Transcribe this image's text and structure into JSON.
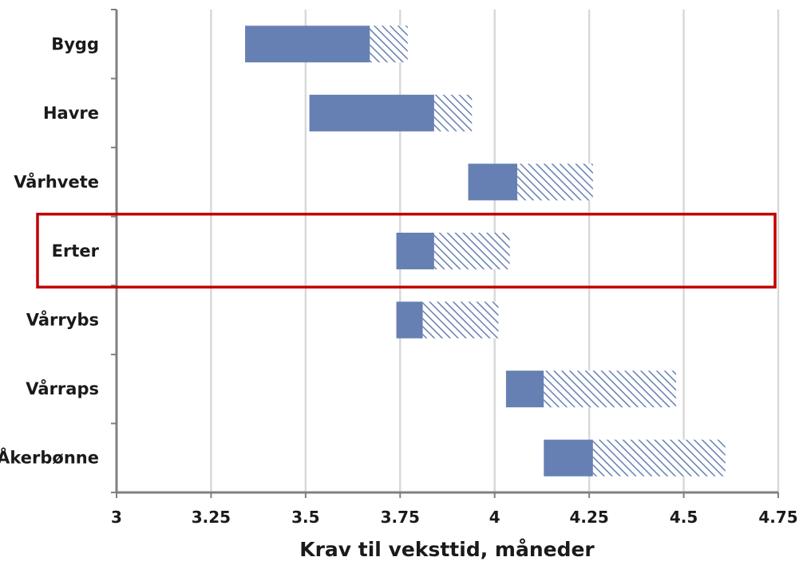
{
  "chart_data": {
    "type": "bar",
    "orientation": "horizontal",
    "stacked": true,
    "categories": [
      "Bygg",
      "Havre",
      "Vårhvete",
      "Erter",
      "Vårrybs",
      "Vårraps",
      "Åkerbønne"
    ],
    "series": [
      {
        "role": "solid",
        "start": [
          3.34,
          3.51,
          3.93,
          3.74,
          3.74,
          4.03,
          4.13
        ],
        "end": [
          3.67,
          3.84,
          4.06,
          3.84,
          3.81,
          4.13,
          4.26
        ]
      },
      {
        "role": "hatched",
        "start": [
          3.67,
          3.84,
          4.06,
          3.84,
          3.81,
          4.13,
          4.26
        ],
        "end": [
          3.77,
          3.94,
          4.26,
          4.04,
          4.01,
          4.48,
          4.61
        ]
      }
    ],
    "x_ticks": [
      "3",
      "3.25",
      "3.5",
      "3.75",
      "4",
      "4.25",
      "4.5",
      "4.75"
    ],
    "xlim": [
      3,
      4.75
    ],
    "xlabel": "Krav til veksttid, måneder",
    "grid": "vertical",
    "highlighted_category": "Erter",
    "colors": {
      "solid": "#6680b3",
      "hatch": "#6680b3",
      "highlight": "#c00000",
      "grid": "#d9d9d9",
      "axis": "#808080"
    }
  }
}
